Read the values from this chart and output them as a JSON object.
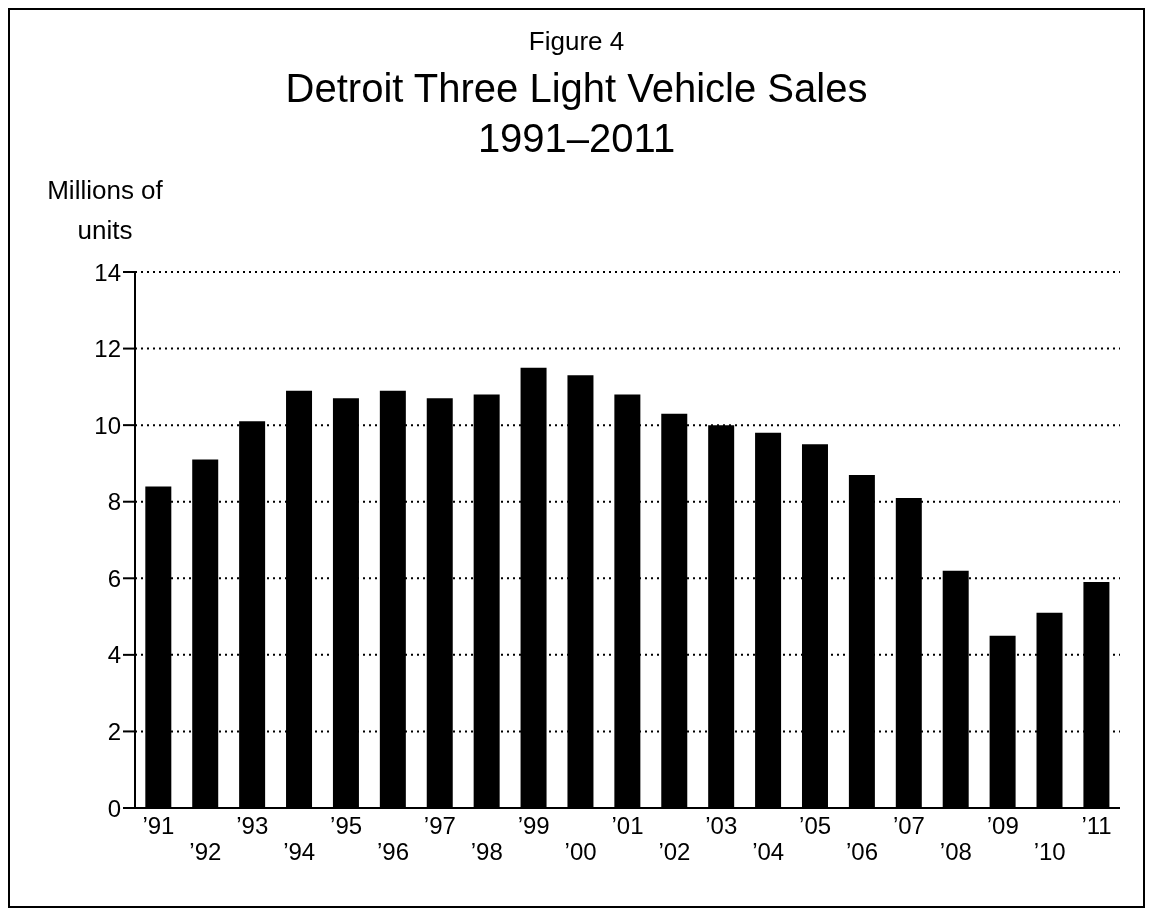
{
  "chart_data": {
    "type": "bar",
    "title": "Detroit Three Light Vehicle Sales",
    "subtitle": "1991–2011",
    "annotations": [
      "Figure 4"
    ],
    "ylabel": "Millions of units",
    "categories": [
      "’91",
      "’92",
      "’93",
      "’94",
      "’95",
      "’96",
      "’97",
      "’98",
      "’99",
      "’00",
      "’01",
      "’02",
      "’03",
      "’04",
      "’05",
      "’06",
      "’07",
      "’08",
      "’09",
      "’10",
      "’11"
    ],
    "values": [
      8.4,
      9.1,
      10.1,
      10.9,
      10.7,
      10.9,
      10.7,
      10.8,
      11.5,
      11.3,
      10.8,
      10.3,
      10.0,
      9.8,
      9.5,
      8.7,
      8.1,
      6.2,
      4.5,
      5.1,
      5.9
    ],
    "color": "#000000",
    "ylim": [
      0,
      14
    ],
    "yticks": [
      0,
      2,
      4,
      6,
      8,
      10,
      12,
      14
    ],
    "grid": "y",
    "line_style": "dotted"
  }
}
